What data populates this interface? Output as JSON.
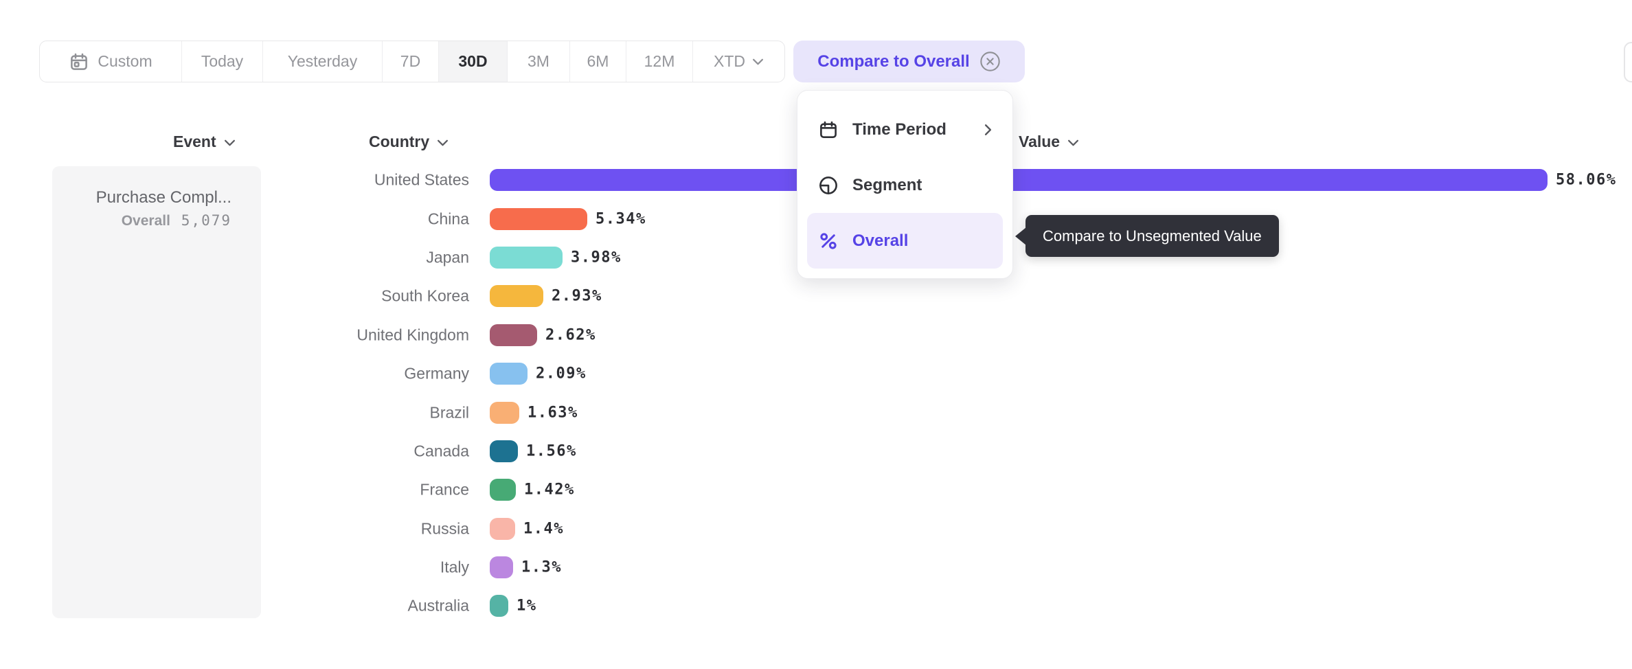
{
  "toolbar": {
    "items": [
      {
        "label": "Custom",
        "icon": "calendar-icon",
        "selected": false
      },
      {
        "label": "Today",
        "selected": false
      },
      {
        "label": "Yesterday",
        "selected": false
      },
      {
        "label": "7D",
        "selected": false
      },
      {
        "label": "30D",
        "selected": true
      },
      {
        "label": "3M",
        "selected": false
      },
      {
        "label": "6M",
        "selected": false
      },
      {
        "label": "12M",
        "selected": false
      },
      {
        "label": "XTD",
        "has_dropdown": true,
        "selected": false
      }
    ]
  },
  "compare_button": {
    "label": "Compare to Overall",
    "icon": "circle-x-icon"
  },
  "menu": {
    "items": [
      {
        "label": "Time Period",
        "icon": "calendar-icon",
        "has_submenu": true,
        "selected": false
      },
      {
        "label": "Segment",
        "icon": "segment-icon",
        "selected": false
      },
      {
        "label": "Overall",
        "icon": "percent-icon",
        "selected": true
      }
    ]
  },
  "tooltip": {
    "text": "Compare to Unsegmented Value"
  },
  "columns": {
    "event": "Event",
    "country": "Country",
    "value": "Value"
  },
  "event_panel": {
    "event_name": "Purchase Compl...",
    "overall_label": "Overall",
    "overall_value": "5,079"
  },
  "chart_data": {
    "type": "bar",
    "orientation": "horizontal",
    "title": "",
    "xlabel": "Value",
    "ylabel": "Country",
    "xlim": [
      0,
      60
    ],
    "categories": [
      "United States",
      "China",
      "Japan",
      "South Korea",
      "United Kingdom",
      "Germany",
      "Brazil",
      "Canada",
      "France",
      "Russia",
      "Italy",
      "Australia"
    ],
    "values": [
      58.06,
      5.34,
      3.98,
      2.93,
      2.62,
      2.09,
      1.63,
      1.56,
      1.42,
      1.4,
      1.3,
      1
    ],
    "display_values": [
      "58.06%",
      "5.34%",
      "3.98%",
      "2.93%",
      "2.62%",
      "2.09%",
      "1.63%",
      "1.56%",
      "1.42%",
      "1.4%",
      "1.3%",
      "1%"
    ],
    "colors": [
      "#6e51f2",
      "#f76c4c",
      "#7bdcd4",
      "#f5b73d",
      "#a55a70",
      "#87c1ef",
      "#f9af74",
      "#1d7291",
      "#47aa75",
      "#f9b5a8",
      "#bb87e0",
      "#55b3a5"
    ]
  },
  "ui_colors": {
    "accent": "#5643e6",
    "accent_chip_bg": "#e8e5fb",
    "menu_selected_bg": "#f1edfc",
    "tooltip_bg": "#303139",
    "panel_bg": "#f5f5f6"
  }
}
